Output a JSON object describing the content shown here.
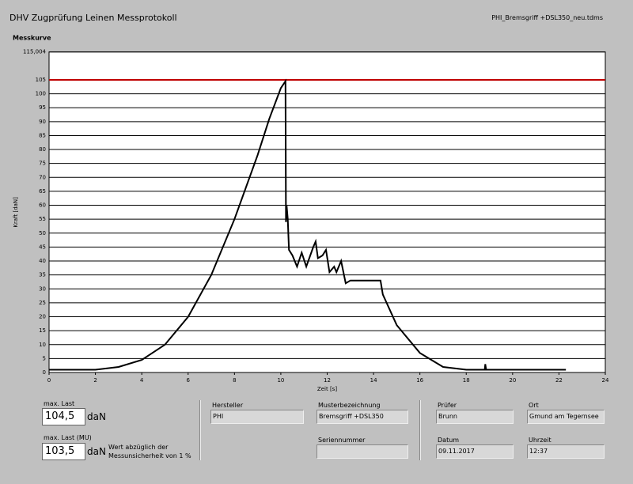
{
  "header": {
    "title": "DHV Zugprüfung Leinen Messprotokoll",
    "file": "PHI_Bremsgriff +DSL350_neu.tdms"
  },
  "chart_data": {
    "type": "line",
    "title": "Messkurve",
    "y_label": "Kraft [daN]",
    "x_label": "Zeit [s]",
    "x": [
      0,
      2,
      3,
      4,
      5,
      6,
      7,
      8,
      9,
      9.5,
      10,
      10.2,
      10.22,
      10.25,
      10.3,
      10.35,
      10.5,
      10.7,
      10.9,
      11.1,
      11.4,
      11.5,
      11.6,
      11.8,
      11.95,
      12.1,
      12.3,
      12.4,
      12.6,
      12.8,
      13,
      14,
      14.3,
      14.4,
      15,
      16,
      17,
      18,
      18.8,
      18.82,
      18.86,
      20,
      22.3
    ],
    "series": [
      {
        "color": "#000000",
        "values": [
          1,
          1,
          2,
          4.5,
          10,
          20,
          35,
          55,
          78,
          91,
          102,
          104.5,
          54,
          60,
          55,
          44,
          42,
          38,
          43,
          38,
          45,
          47,
          41,
          42,
          44,
          36,
          38,
          36,
          40,
          32,
          33,
          33,
          33,
          28,
          17,
          7,
          2,
          1,
          1,
          3,
          1,
          1,
          1
        ]
      }
    ],
    "reference_line": {
      "value": 105,
      "color": "#c00000"
    },
    "xlim": [
      0,
      24
    ],
    "xticks": [
      0,
      2,
      4,
      6,
      8,
      10,
      12,
      14,
      16,
      18,
      20,
      22,
      24
    ],
    "ylim": [
      0,
      115.004
    ],
    "yticks": [
      0,
      5,
      10,
      15,
      20,
      25,
      30,
      35,
      40,
      45,
      50,
      55,
      60,
      65,
      70,
      75,
      80,
      85,
      90,
      95,
      100,
      105,
      {
        "value": 115.004,
        "label": "115,004"
      }
    ],
    "grid": true
  },
  "results": {
    "max_label": "max. Last",
    "max_value": "104,5",
    "unit": "daN",
    "mu_label": "max. Last (MU)",
    "mu_value": "103,5",
    "mu_unit": "daN",
    "note": "Wert abzüglich der Messunsicherheit von 1 %"
  },
  "fields": {
    "hersteller_label": "Hersteller",
    "hersteller": "PHI",
    "muster_label": "Musterbezeichnung",
    "muster": "Bremsgriff +DSL350",
    "serien_label": "Seriennummer",
    "pruefer_label": "Prüfer",
    "pruefer": "Brunn",
    "ort_label": "Ort",
    "ort": "Gmund am Tegernsee",
    "datum_label": "Datum",
    "datum": "09.11.2017",
    "uhrzeit_label": "Uhrzeit",
    "uhrzeit": "12:37"
  }
}
